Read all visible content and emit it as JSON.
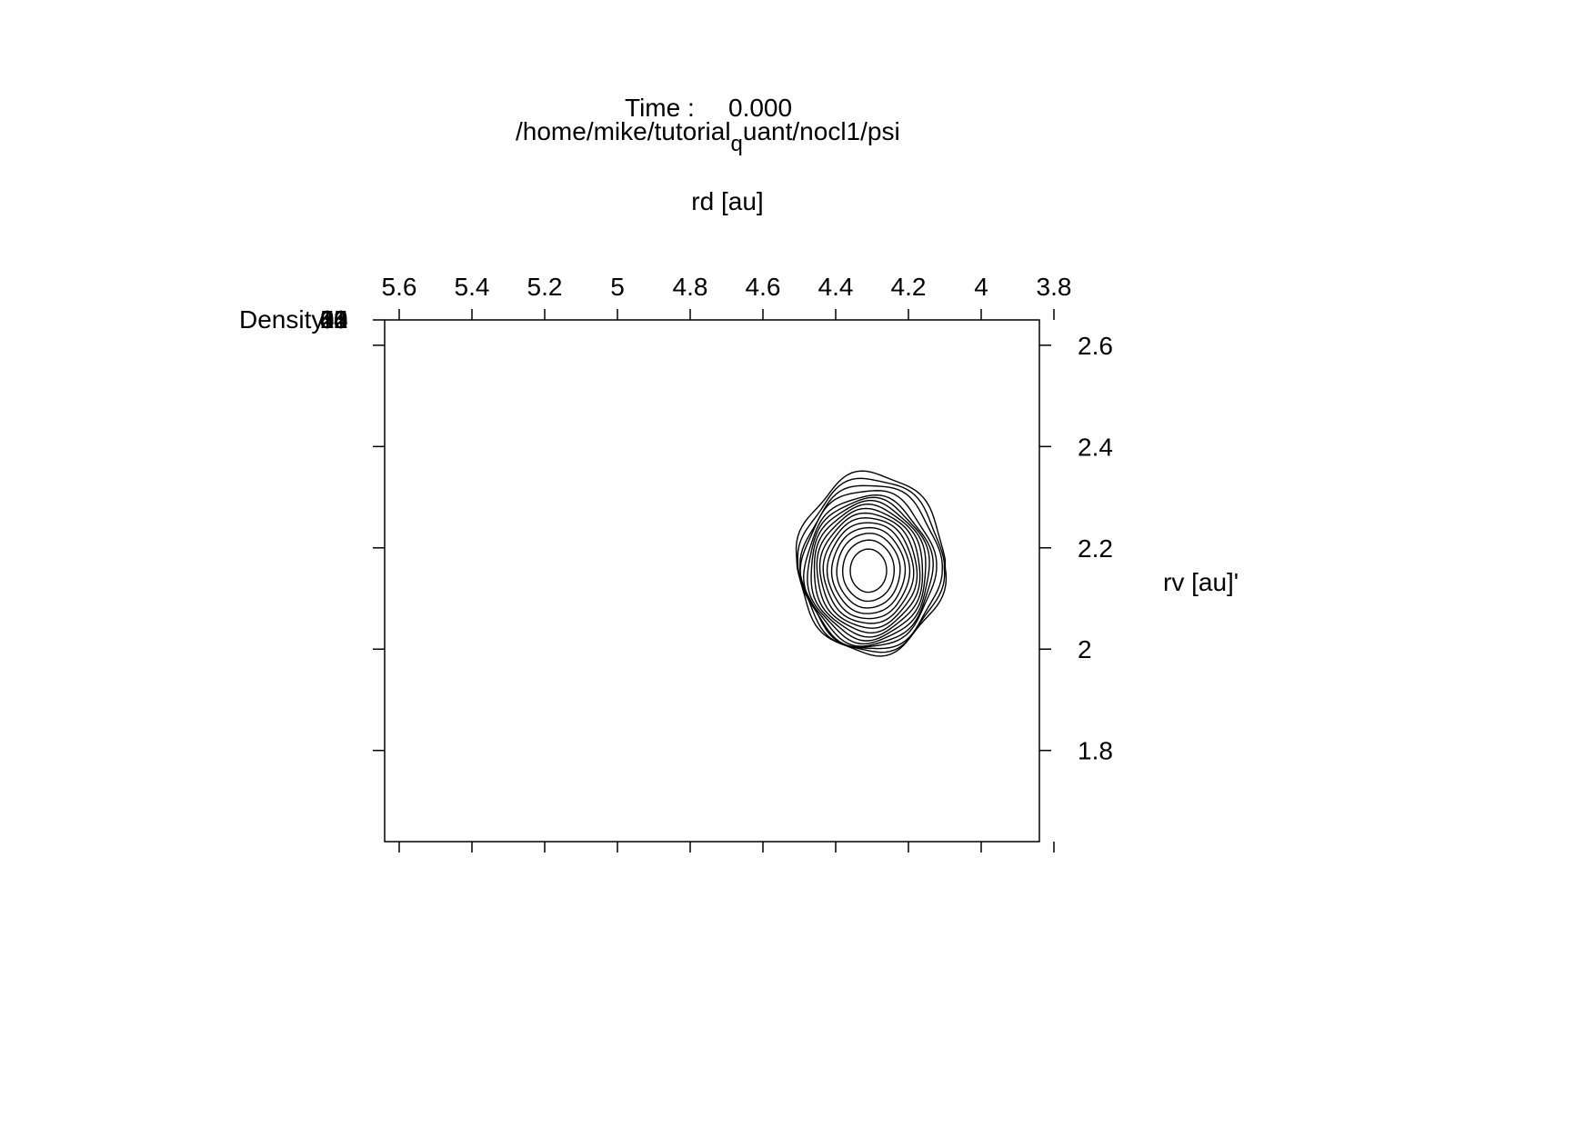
{
  "chart_data": {
    "type": "contour",
    "title": {
      "time_label": "Time :",
      "time_value": "0.000",
      "path_before": "/home/mike/tutorial",
      "path_subscript": "q",
      "path_after": "uant/nocl1/psi"
    },
    "xlabel": "rd [au]",
    "ylabel": "rv [au]'",
    "zlabel": "Density",
    "zlabel_overlap_digits": [
      "0",
      "1",
      "2",
      "3",
      "4",
      "5"
    ],
    "xlim": [
      5.64,
      3.84
    ],
    "ylim": [
      1.62,
      2.65
    ],
    "x_axis_position": "top",
    "y_axis_position": "right",
    "x_ticks": [
      5.6,
      5.4,
      5.2,
      5,
      4.8,
      4.6,
      4.4,
      4.2,
      4,
      3.8
    ],
    "x_tick_labels": [
      "5.6",
      "5.4",
      "5.2",
      "5",
      "4.8",
      "4.6",
      "4.4",
      "4.2",
      "4",
      "3.8"
    ],
    "y_ticks": [
      2.6,
      2.4,
      2.2,
      2,
      1.8
    ],
    "y_tick_labels": [
      "2.6",
      "2.4",
      "2.2",
      "2",
      "1.8"
    ],
    "grid": false,
    "line_color": "#000000",
    "density_peak": {
      "center_x": 4.31,
      "center_y": 2.155,
      "outer_contour_half_width_x": 0.2,
      "outer_contour_half_height_y": 0.17,
      "contour_count": 16
    }
  }
}
